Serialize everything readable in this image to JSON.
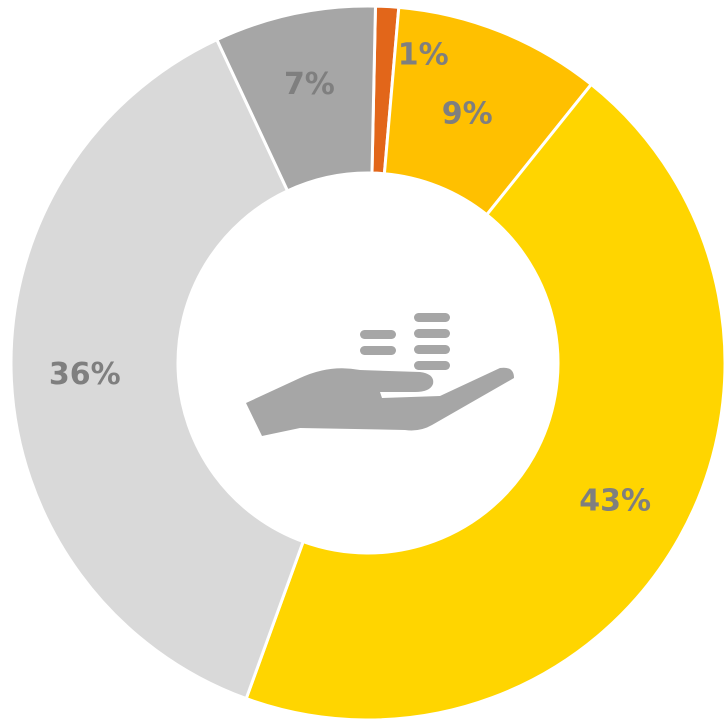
{
  "chart_data": {
    "type": "donut",
    "categories": [
      null,
      null,
      null,
      null,
      null
    ],
    "values": [
      1,
      9,
      43,
      36,
      7
    ],
    "value_labels": [
      "1%",
      "9%",
      "43%",
      "36%",
      "7%"
    ],
    "colors": [
      "#E2661A",
      "#FFC000",
      "#FFD500",
      "#D9D9D9",
      "#A6A6A6"
    ]
  }
}
